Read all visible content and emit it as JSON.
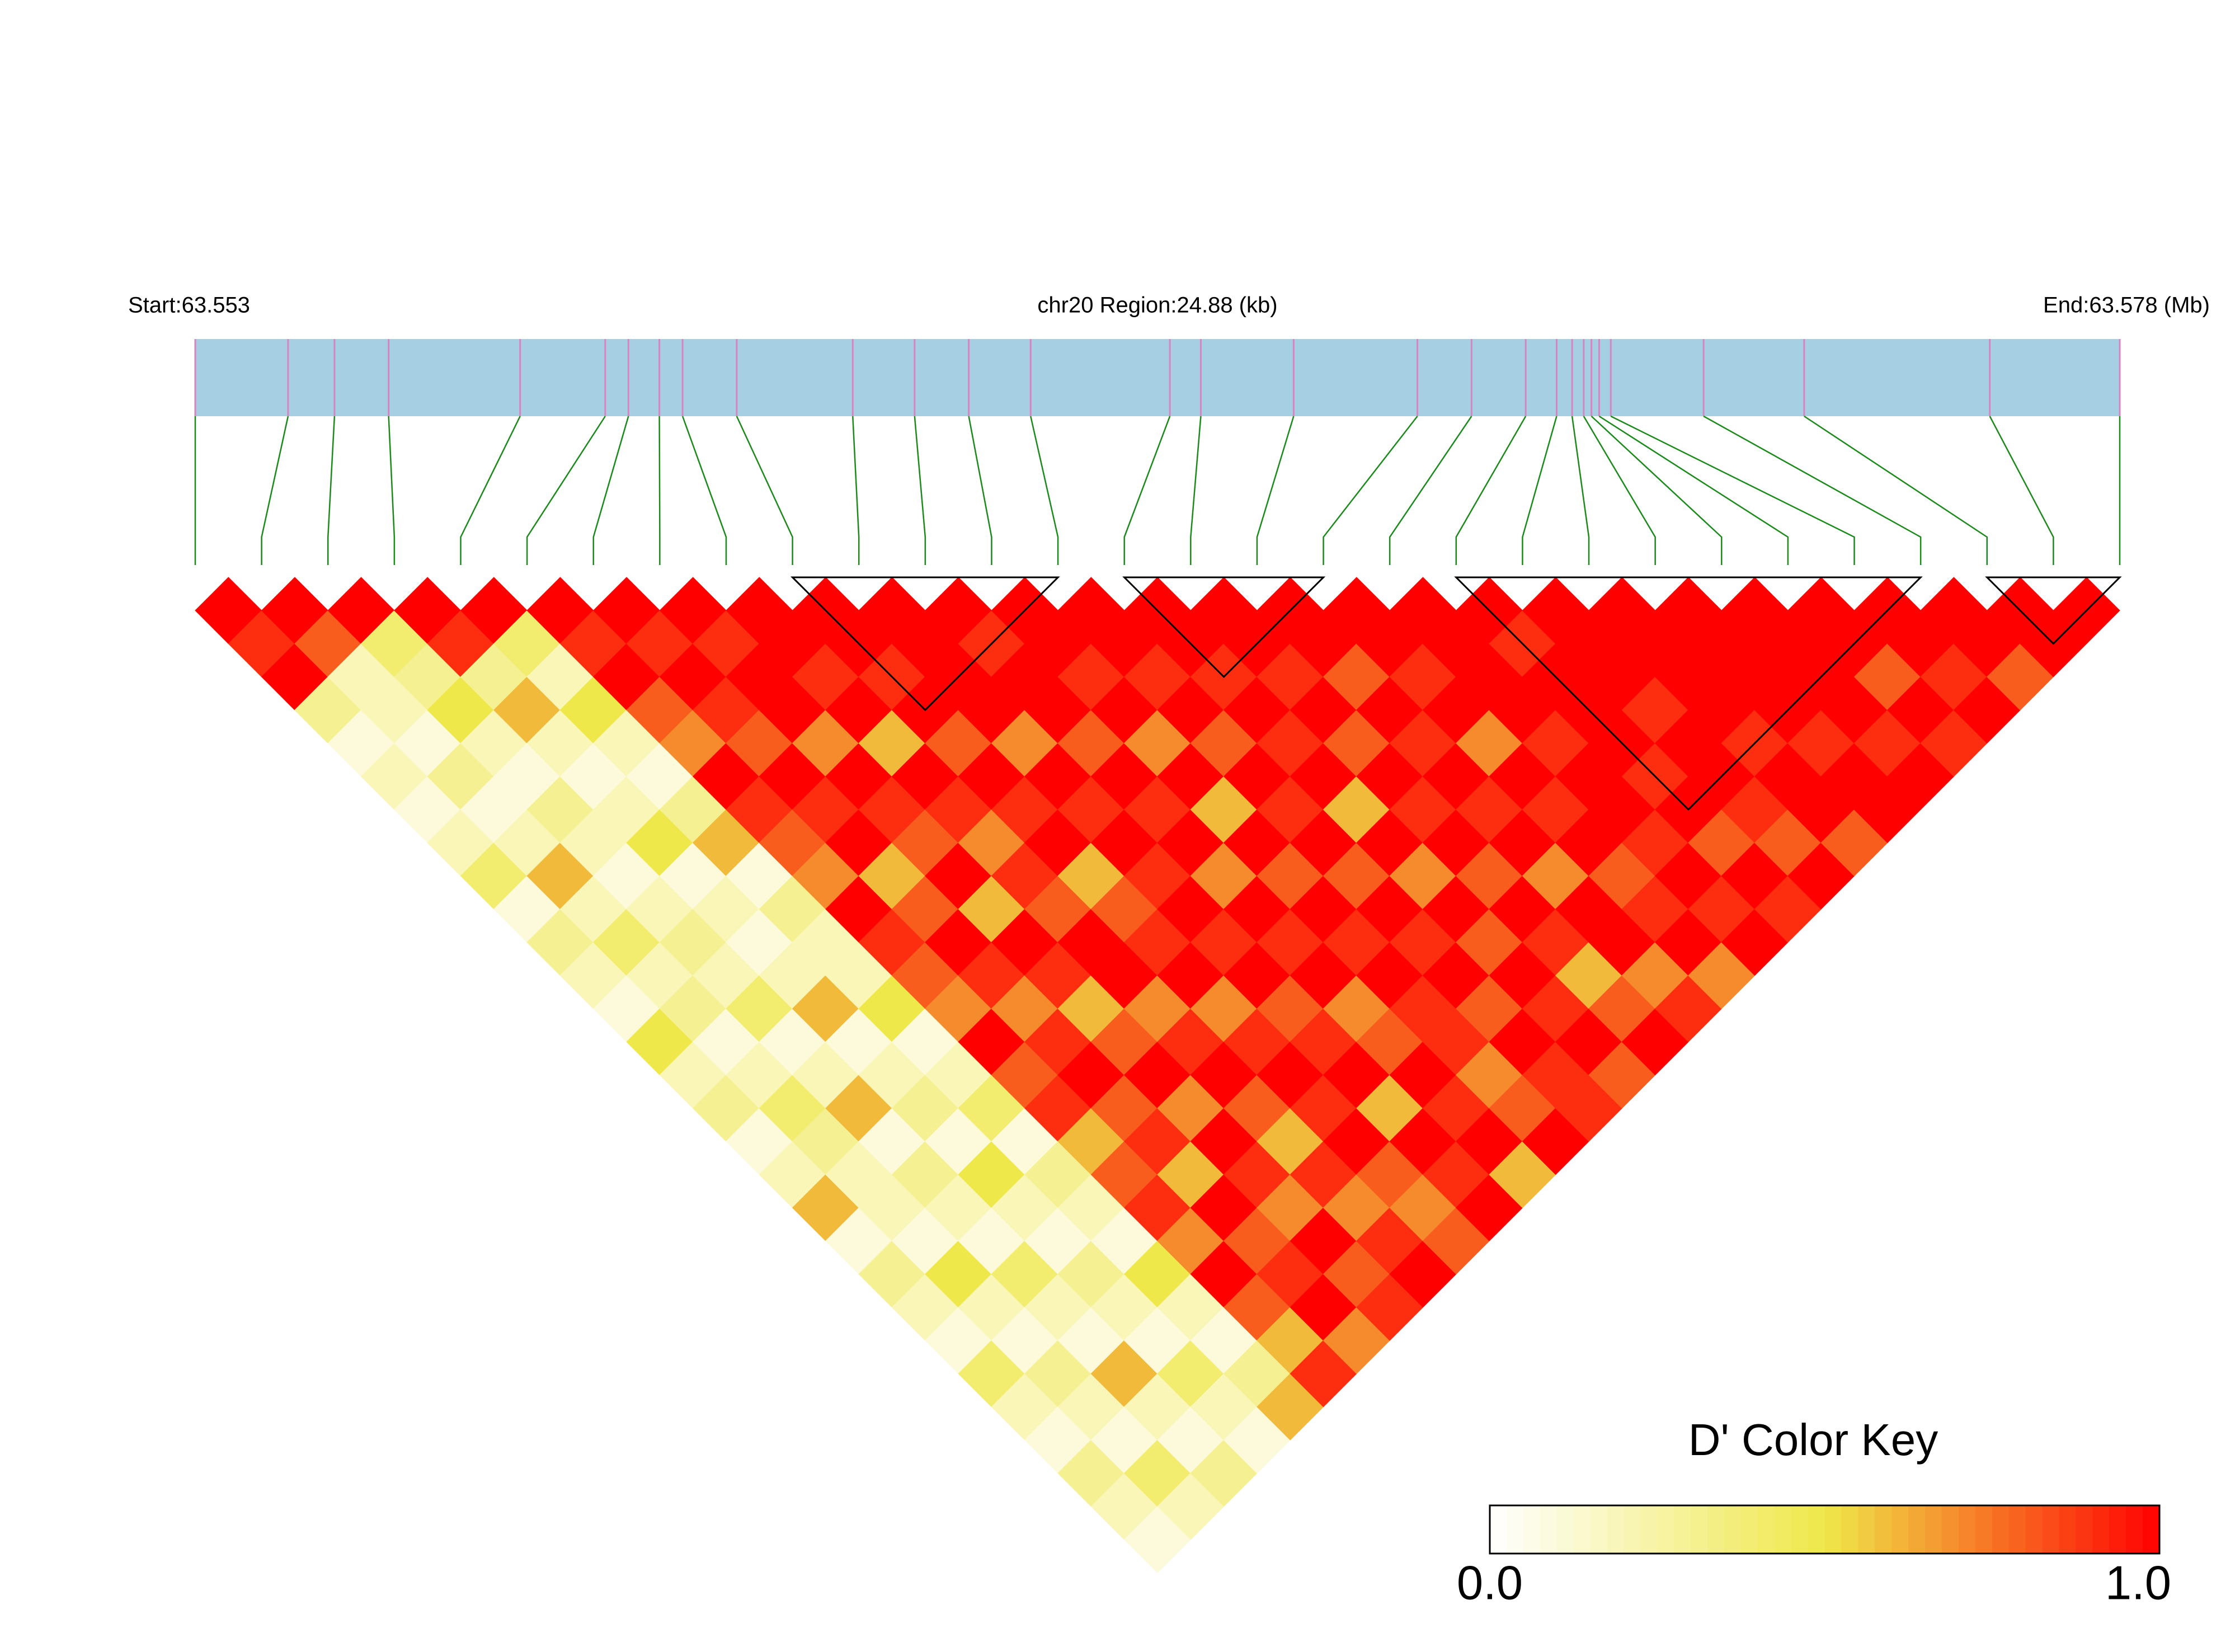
{
  "chart_data": {
    "type": "ld_heatmap",
    "start_label": "Start:63.553",
    "region_label": "chr20 Region:24.88 (kb)",
    "end_label": "End:63.578 (Mb)",
    "region_kb": 24.88,
    "snp_positions": [
      0,
      1.2,
      1.8,
      2.5,
      4.2,
      5.3,
      5.6,
      6.0,
      6.3,
      7.0,
      8.5,
      9.3,
      10.0,
      10.8,
      12.6,
      13.0,
      14.2,
      15.8,
      16.5,
      17.2,
      17.6,
      17.8,
      17.95,
      18.05,
      18.15,
      18.3,
      19.5,
      20.8,
      23.2,
      24.88
    ],
    "dprime": [
      [
        1
      ],
      [
        0.9,
        1
      ],
      [
        1,
        0.8,
        1
      ],
      [
        0.3,
        0.2,
        0.4,
        1
      ],
      [
        0.1,
        0.2,
        0.3,
        0.9,
        1
      ],
      [
        0.2,
        0.1,
        0.5,
        0.3,
        0.4,
        1
      ],
      [
        0.1,
        0.3,
        0.2,
        0.6,
        0.2,
        0.9,
        1
      ],
      [
        0.2,
        0.1,
        0.1,
        0.2,
        0.5,
        1,
        0.9,
        1
      ],
      [
        0.4,
        0.2,
        0.3,
        0.1,
        0.2,
        0.8,
        1,
        0.9,
        1
      ],
      [
        0.1,
        0.6,
        0.2,
        0.2,
        0.1,
        0.7,
        0.9,
        1,
        1,
        1
      ],
      [
        0.3,
        0.2,
        0.1,
        0.5,
        0.3,
        1,
        0.8,
        1,
        0.9,
        1,
        1
      ],
      [
        0.2,
        0.4,
        0.2,
        0.1,
        0.6,
        0.9,
        1,
        0.7,
        1,
        0.9,
        1,
        1
      ],
      [
        0.1,
        0.2,
        0.3,
        0.2,
        0.1,
        0.8,
        0.9,
        1,
        0.6,
        1,
        1,
        0.9,
        1
      ],
      [
        0.5,
        0.3,
        0.2,
        0.1,
        0.3,
        0.7,
        1,
        0.9,
        1,
        0.8,
        1,
        1,
        1,
        1
      ],
      [
        0.2,
        0.1,
        0.4,
        0.2,
        0.2,
        1,
        0.6,
        0.8,
        0.9,
        1,
        0.7,
        1,
        0.9,
        1,
        1
      ],
      [
        0.3,
        0.2,
        0.1,
        0.6,
        0.2,
        0.9,
        0.8,
        1,
        0.7,
        0.9,
        1,
        0.8,
        1,
        0.9,
        1,
        1
      ],
      [
        0.1,
        0.4,
        0.2,
        0.1,
        0.5,
        0.8,
        1,
        0.6,
        0.9,
        1,
        0.9,
        1,
        0.7,
        1,
        0.9,
        1,
        1
      ],
      [
        0.2,
        0.3,
        0.6,
        0.2,
        0.1,
        0.7,
        0.9,
        1,
        0.8,
        0.6,
        1,
        0.9,
        1,
        0.8,
        1,
        0.9,
        1,
        1
      ],
      [
        0.6,
        0.2,
        0.1,
        0.3,
        0.2,
        1,
        0.7,
        0.9,
        1,
        0.8,
        0.9,
        1,
        0.6,
        1,
        0.9,
        1,
        0.8,
        1,
        1
      ],
      [
        0.1,
        0.2,
        0.3,
        0.1,
        0.4,
        0.8,
        0.9,
        0.6,
        1,
        0.9,
        1,
        0.7,
        1,
        0.9,
        1,
        0.8,
        1,
        0.9,
        1,
        1
      ],
      [
        0.3,
        0.1,
        0.2,
        0.5,
        0.1,
        0.9,
        1,
        0.8,
        0.7,
        1,
        0.9,
        1,
        0.8,
        1,
        0.6,
        1,
        0.9,
        1,
        1,
        0.9,
        1
      ],
      [
        0.2,
        0.5,
        0.1,
        0.2,
        0.3,
        0.6,
        0.8,
        1,
        0.9,
        0.7,
        1,
        0.9,
        1,
        0.8,
        1,
        0.9,
        1,
        0.7,
        1,
        1,
        1,
        1
      ],
      [
        0.1,
        0.2,
        0.4,
        0.1,
        0.2,
        0.8,
        0.9,
        0.7,
        1,
        0.9,
        0.8,
        1,
        0.9,
        1,
        0.7,
        1,
        0.9,
        1,
        0.9,
        1,
        1,
        1,
        1
      ],
      [
        0.4,
        0.1,
        0.2,
        0.3,
        0.1,
        0.9,
        0.6,
        1,
        0.8,
        1,
        0.9,
        0.7,
        1,
        0.9,
        1,
        0.8,
        1,
        0.9,
        1,
        1,
        0.9,
        1,
        1,
        1
      ],
      [
        0.2,
        0.3,
        0.1,
        0.2,
        0.5,
        0.7,
        1,
        0.9,
        0.6,
        0.9,
        1,
        0.8,
        0.9,
        1,
        0.8,
        1,
        0.7,
        1,
        1,
        0.9,
        1,
        1,
        1,
        1,
        1
      ],
      [
        0.1,
        0.2,
        0.6,
        0.1,
        0.2,
        1,
        0.8,
        0.7,
        0.9,
        1,
        0.6,
        1,
        0.9,
        0.8,
        1,
        0.9,
        1,
        0.8,
        0.9,
        1,
        1,
        0.9,
        1,
        1,
        1,
        1
      ],
      [
        0.3,
        0.1,
        0.2,
        0.4,
        0.1,
        0.8,
        0.9,
        1,
        0.7,
        0.8,
        1,
        0.9,
        0.7,
        1,
        0.9,
        0.6,
        1,
        0.9,
        1,
        0.8,
        0.9,
        1,
        0.9,
        1,
        0.8,
        1,
        1
      ],
      [
        0.2,
        0.4,
        0.1,
        0.2,
        0.3,
        0.6,
        1,
        0.8,
        0.9,
        0.7,
        0.9,
        1,
        0.8,
        0.9,
        1,
        0.8,
        0.7,
        1,
        0.9,
        1,
        0.8,
        1,
        1,
        0.9,
        1,
        0.9,
        1,
        1
      ],
      [
        0.1,
        0.2,
        0.3,
        0.1,
        0.6,
        0.9,
        0.7,
        0.9,
        1,
        0.8,
        1,
        0.6,
        1,
        0.9,
        0.8,
        1,
        0.9,
        0.7,
        1,
        0.9,
        1,
        0.8,
        1,
        1,
        0.9,
        1,
        0.8,
        1,
        1
      ]
    ],
    "blocks": [
      [
        9,
        13
      ],
      [
        14,
        17
      ],
      [
        19,
        26
      ],
      [
        27,
        29
      ]
    ],
    "bar_color": "#a6cfe3",
    "snp_line_color": "#d982c4",
    "link_color": "#1a8a1a",
    "block_color": "#000000",
    "color_key": {
      "title": "D' Color Key",
      "colors": [
        "#ffffff",
        "#efe84a",
        "#ff0000"
      ],
      "lim": [
        0,
        1
      ],
      "ticks": [
        {
          "value": 0,
          "label": "0.0"
        },
        {
          "value": 1,
          "label": "1.0"
        }
      ]
    }
  }
}
